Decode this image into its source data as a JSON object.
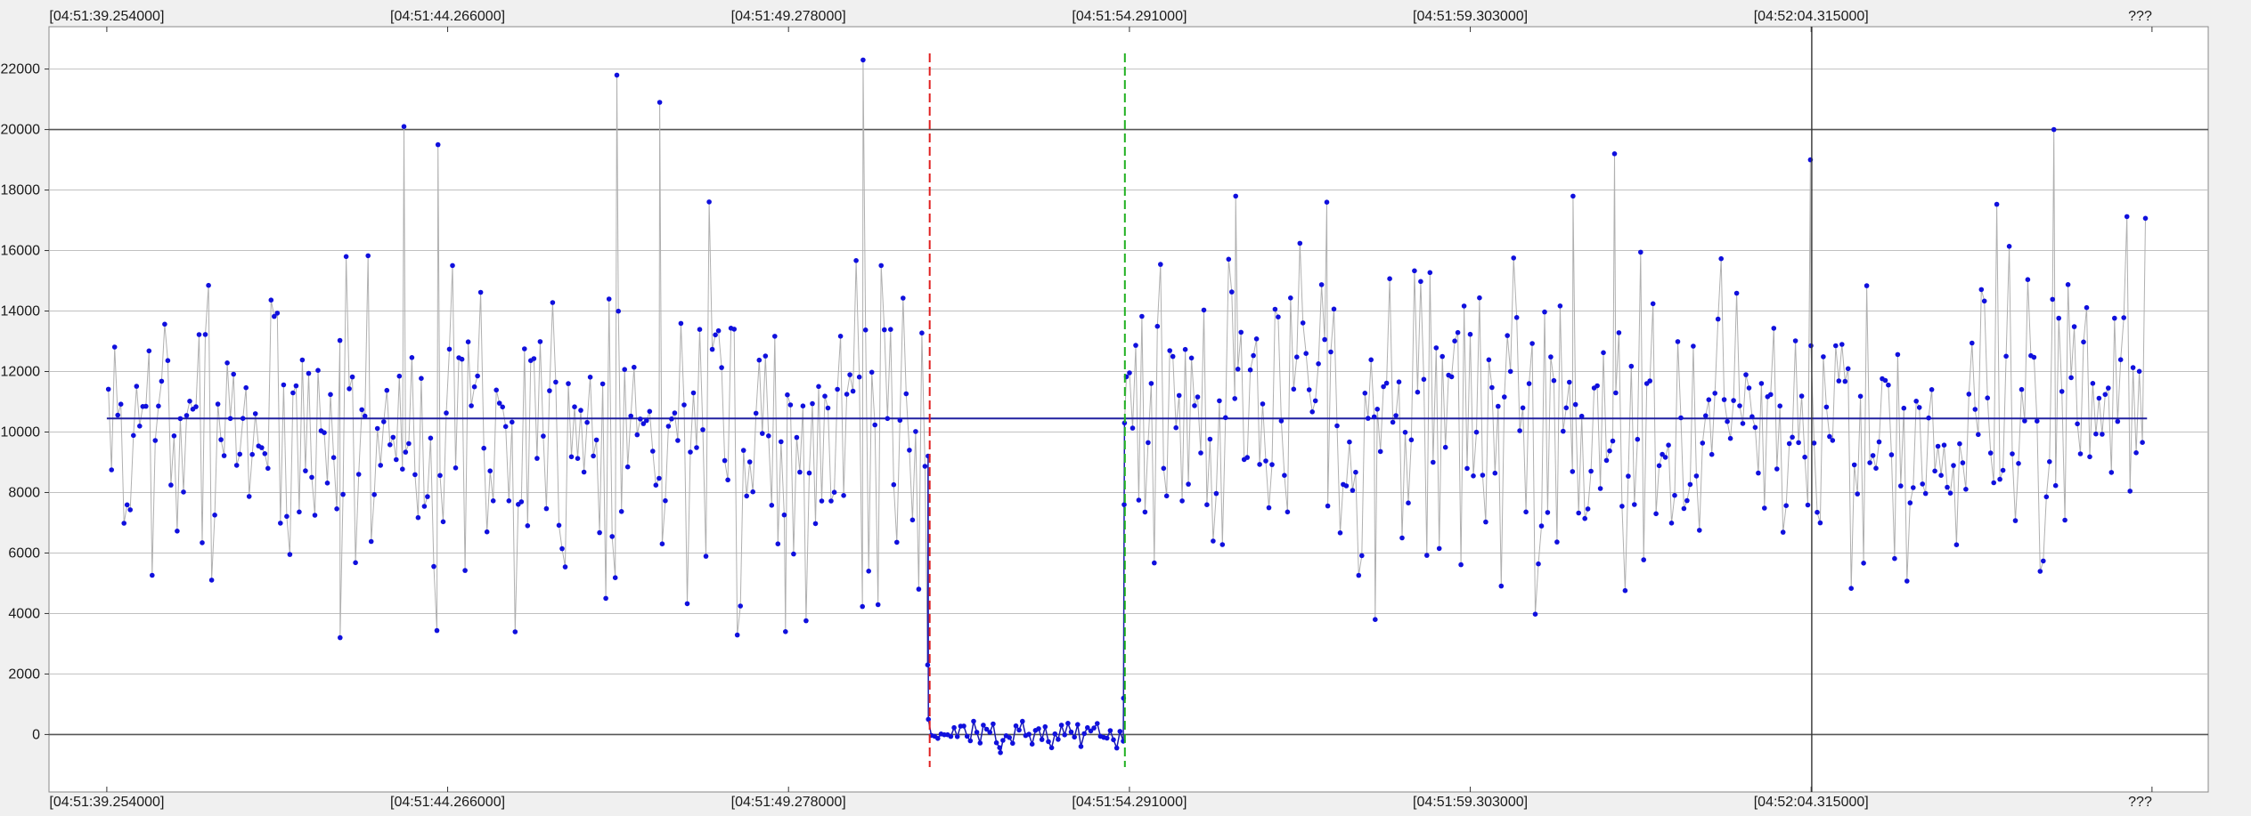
{
  "chart_data": {
    "type": "scatter",
    "title": "",
    "xlabel": "",
    "ylabel": "",
    "x_tick_labels": [
      "[04:51:39.254000]",
      "[04:51:44.266000]",
      "[04:51:49.278000]",
      "[04:51:54.291000]",
      "[04:51:59.303000]",
      "[04:52:04.315000]",
      "???"
    ],
    "x_tick_values": [
      0,
      5.012,
      10.024,
      15.037,
      20.049,
      25.061,
      30.073
    ],
    "xlim": [
      -0.85,
      30.9
    ],
    "ylim": [
      -1900,
      23400
    ],
    "y_ticks": [
      0,
      2000,
      4000,
      6000,
      8000,
      10000,
      12000,
      14000,
      16000,
      18000,
      20000,
      22000
    ],
    "y_tick_labels": [
      "0",
      "2000",
      "4000",
      "6000",
      "8000",
      "10000",
      "12000",
      "14000",
      "16000",
      "18000",
      "20000",
      "22000"
    ],
    "y_bold_lines": [
      0,
      20000
    ],
    "grid": true,
    "marker_lines": [
      {
        "x": 12.1,
        "color": "#e02020",
        "style": "dashed"
      },
      {
        "x": 14.97,
        "color": "#20b020",
        "style": "dashed"
      },
      {
        "x": 25.07,
        "color": "#333333",
        "style": "solid"
      }
    ],
    "mean_value": 10450,
    "colors": {
      "points": "#1010dd",
      "connector": "#b0b0b0",
      "mean_line": "#2020a0",
      "grid": "#c0c0c0",
      "plot_bg": "#ffffff"
    },
    "segments": [
      {
        "start": 0.0,
        "end": 12.1,
        "count": 263,
        "low": 3200,
        "high": 22300,
        "center": 10000,
        "seed": 7
      },
      {
        "start": 12.1,
        "end": 14.97,
        "count": 60,
        "low": -700,
        "high": 600,
        "center": 0,
        "seed": 13
      },
      {
        "start": 14.97,
        "end": 30.0,
        "count": 330,
        "low": 3700,
        "high": 20100,
        "center": 10300,
        "seed": 29
      }
    ],
    "peaks": [
      {
        "x": 11.12,
        "y": 22300
      },
      {
        "x": 7.5,
        "y": 21800
      },
      {
        "x": 8.13,
        "y": 20900
      },
      {
        "x": 4.37,
        "y": 20100
      },
      {
        "x": 4.87,
        "y": 19500
      },
      {
        "x": 28.63,
        "y": 20000
      },
      {
        "x": 25.05,
        "y": 19000
      },
      {
        "x": 22.17,
        "y": 19200
      },
      {
        "x": 16.6,
        "y": 17800
      },
      {
        "x": 21.56,
        "y": 17800
      },
      {
        "x": 17.94,
        "y": 17600
      },
      {
        "x": 3.43,
        "y": 3200
      },
      {
        "x": 9.98,
        "y": 3400
      },
      {
        "x": 18.65,
        "y": 3800
      },
      {
        "x": 13.14,
        "y": -600
      }
    ]
  }
}
